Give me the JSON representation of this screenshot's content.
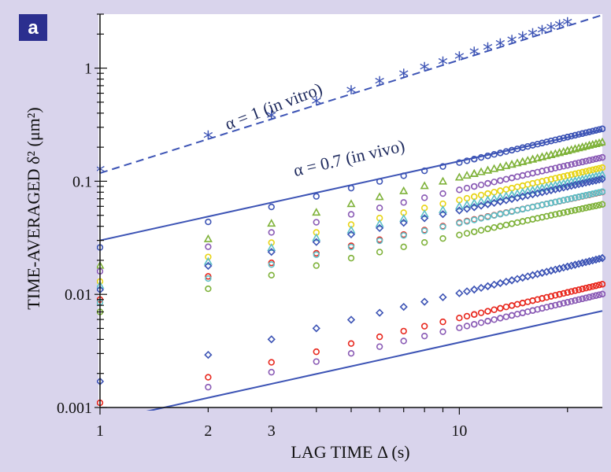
{
  "panel_label": "a",
  "chart_data": {
    "type": "scatter",
    "x_scale": "log",
    "y_scale": "log",
    "xlim": [
      1,
      25
    ],
    "ylim": [
      0.001,
      3
    ],
    "x_ticks": [
      1,
      2,
      3,
      10
    ],
    "x_tick_labels": [
      "1",
      "2",
      "3",
      "10"
    ],
    "y_ticks": [
      0.001,
      0.01,
      0.1,
      1
    ],
    "y_tick_labels": [
      "0.001",
      "0.01",
      "0.1",
      "1"
    ],
    "xlabel": "LAG TIME Δ (s)",
    "ylabel": "TIME-AVERAGED δ² (μm²)",
    "grid": false,
    "reference_lines": [
      {
        "label": "α = 1 (in vitro)",
        "slope": 1.0,
        "y_at_x1": 0.118,
        "style": "dashed"
      },
      {
        "label": "α = 0.7 (in vivo)",
        "slope": 0.7,
        "y_at_x1": 0.03,
        "style": "solid"
      },
      {
        "label": "",
        "slope": 0.7,
        "y_at_x1": 0.00075,
        "style": "solid"
      }
    ],
    "series": [
      {
        "marker": "asterisk",
        "color": "#3d54b5",
        "amp": 0.118,
        "alpha": 1.0
      },
      {
        "marker": "circle",
        "color": "#3d54b5",
        "amp": 0.026,
        "alpha": 0.75
      },
      {
        "marker": "triangle",
        "color": "#7fb23a",
        "amp": 0.018,
        "alpha": 0.78
      },
      {
        "marker": "circle",
        "color": "#8a5bb5",
        "amp": 0.016,
        "alpha": 0.72
      },
      {
        "marker": "circle",
        "color": "#e8d417",
        "amp": 0.013,
        "alpha": 0.72
      },
      {
        "marker": "triangle",
        "color": "#5ec0c8",
        "amp": 0.012,
        "alpha": 0.7
      },
      {
        "marker": "diamond",
        "color": "#3d54b5",
        "amp": 0.011,
        "alpha": 0.7
      },
      {
        "marker": "circle",
        "color": "#e8281e",
        "amp": 0.009,
        "alpha": 0.68
      },
      {
        "marker": "circle",
        "color": "#7fb23a",
        "amp": 0.007,
        "alpha": 0.68
      },
      {
        "marker": "circle",
        "color": "#5ec0c8",
        "amp": 0.0085,
        "alpha": 0.7
      },
      {
        "marker": "diamond",
        "color": "#3d54b5",
        "amp": 0.0017,
        "alpha": 0.78
      },
      {
        "marker": "circle",
        "color": "#e8281e",
        "amp": 0.0011,
        "alpha": 0.75
      },
      {
        "marker": "circle",
        "color": "#8a5bb5",
        "amp": 0.0009,
        "alpha": 0.75
      }
    ]
  }
}
